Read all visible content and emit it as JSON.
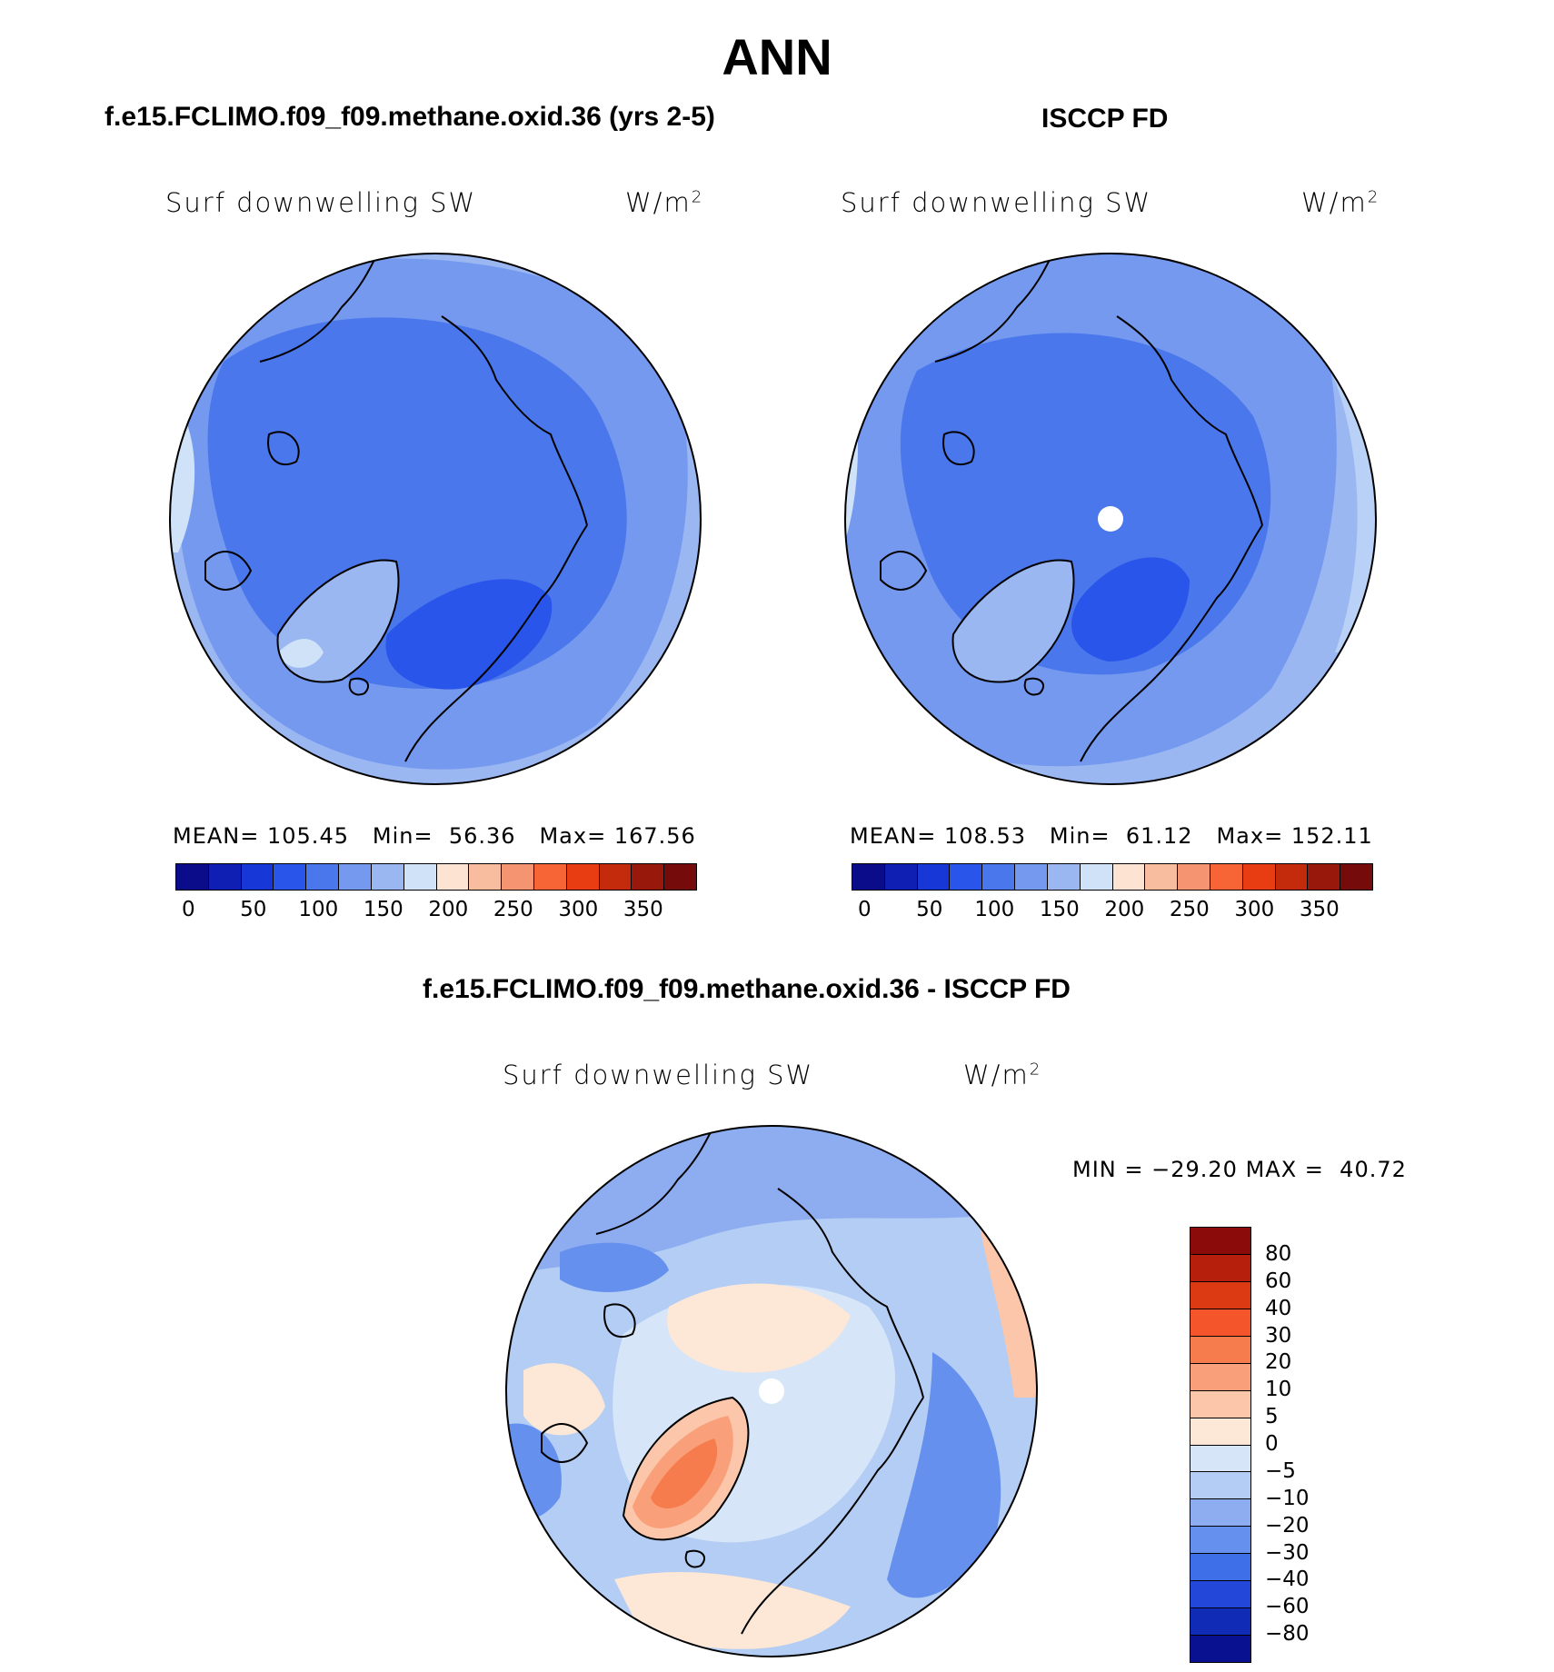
{
  "title": "ANN",
  "chart_data": [
    {
      "type": "heatmap",
      "projection": "north polar stereographic",
      "case_title": "f.e15.FCLIMO.f09_f09.methane.oxid.36 (yrs 2-5)",
      "variable": "Surf downwelling SW",
      "units_base": "W/m",
      "units_exp": "2",
      "stats": {
        "mean_label": "MEAN=",
        "mean": "105.45",
        "min_label": "Min=",
        "min": "56.36",
        "max_label": "Max=",
        "max": "167.56"
      },
      "colorbar_ticks": [
        "0",
        "50",
        "100",
        "150",
        "200",
        "250",
        "300",
        "350"
      ],
      "colorbar_colors": [
        "#0b0c8a",
        "#0f1fb4",
        "#1737d6",
        "#2a55ea",
        "#4a78ec",
        "#7499ef",
        "#9ab7f2",
        "#cfe2f8",
        "#fde3d1",
        "#f8bd9f",
        "#f59471",
        "#f76536",
        "#e83d12",
        "#c42b0c",
        "#98180b",
        "#750b0b"
      ],
      "values_range": [
        56.36,
        167.56
      ]
    },
    {
      "type": "heatmap",
      "projection": "north polar stereographic",
      "case_title": "ISCCP FD",
      "variable": "Surf downwelling SW",
      "units_base": "W/m",
      "units_exp": "2",
      "stats": {
        "mean_label": "MEAN=",
        "mean": "108.53",
        "min_label": "Min=",
        "min": "61.12",
        "max_label": "Max=",
        "max": "152.11"
      },
      "colorbar_ticks": [
        "0",
        "50",
        "100",
        "150",
        "200",
        "250",
        "300",
        "350"
      ],
      "colorbar_colors": [
        "#0b0c8a",
        "#0f1fb4",
        "#1737d6",
        "#2a55ea",
        "#4a78ec",
        "#7499ef",
        "#9ab7f2",
        "#cfe2f8",
        "#fde3d1",
        "#f8bd9f",
        "#f59471",
        "#f76536",
        "#e83d12",
        "#c42b0c",
        "#98180b",
        "#750b0b"
      ],
      "values_range": [
        61.12,
        152.11
      ]
    },
    {
      "type": "heatmap",
      "projection": "north polar stereographic",
      "case_title": "f.e15.FCLIMO.f09_f09.methane.oxid.36 - ISCCP FD",
      "variable": "Surf downwelling SW",
      "units_base": "W/m",
      "units_exp": "2",
      "stats": {
        "min_label": "MIN =",
        "min": "−29.20",
        "max_label": "MAX =",
        "max": "40.72"
      },
      "colorbar_ticks": [
        "80",
        "60",
        "40",
        "30",
        "20",
        "10",
        "5",
        "0",
        "−5",
        "−10",
        "−20",
        "−30",
        "−40",
        "−60",
        "−80"
      ],
      "colorbar_colors": [
        "#8b0a0a",
        "#b51f0b",
        "#dc3a12",
        "#f4552a",
        "#f77c4d",
        "#f9a07a",
        "#fbc6aa",
        "#fde7d7",
        "#d6e6f8",
        "#b3cdf4",
        "#8dadf0",
        "#6590ed",
        "#3f6ee9",
        "#2348d9",
        "#102cb7",
        "#0a1190"
      ],
      "values_range": [
        -29.2,
        40.72
      ]
    }
  ]
}
